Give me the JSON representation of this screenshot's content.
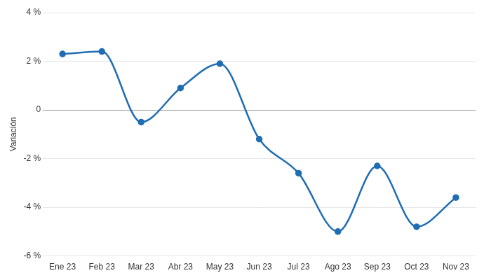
{
  "chart_data": {
    "type": "line",
    "y_label": "Variación",
    "categories": [
      "Ene 23",
      "Feb 23",
      "Mar 23",
      "Abr 23",
      "May 23",
      "Jun 23",
      "Jul 23",
      "Ago 23",
      "Sep 23",
      "Oct 23",
      "Nov 23"
    ],
    "values": [
      2.3,
      2.4,
      -0.5,
      0.9,
      1.9,
      -1.2,
      -2.6,
      -5.0,
      -2.3,
      -4.8,
      -3.6
    ],
    "color": "#1f6db3",
    "marker": "circle",
    "line_style": "smooth",
    "ylim": [
      -6,
      4
    ],
    "yticks": [
      {
        "value": -6,
        "label": "-6 %"
      },
      {
        "value": -4,
        "label": "-4 %"
      },
      {
        "value": -2,
        "label": "-2 %"
      },
      0,
      {
        "value": 2,
        "label": "2 %"
      },
      {
        "value": 4,
        "label": "4 %"
      }
    ],
    "grid": true
  }
}
